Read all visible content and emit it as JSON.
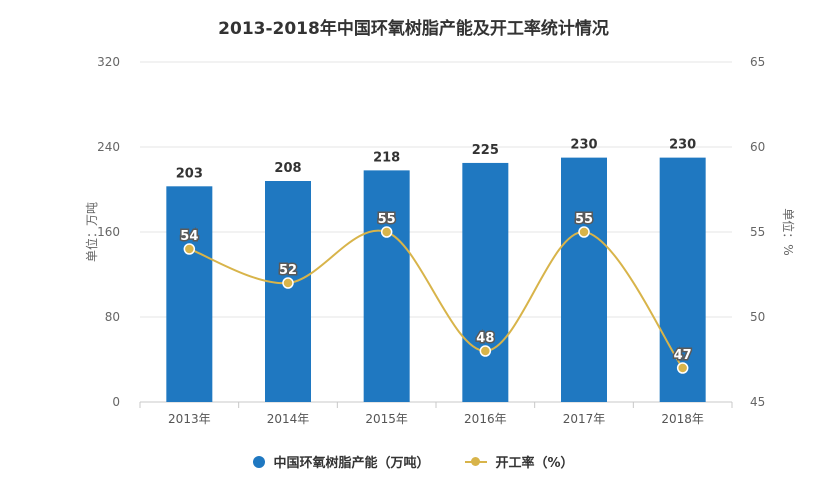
{
  "chart_data": {
    "type": "bar",
    "title": "2013-2018年中国环氧树脂产能及开工率统计情况",
    "categories": [
      "2013年",
      "2014年",
      "2015年",
      "2016年",
      "2017年",
      "2018年"
    ],
    "series": [
      {
        "name": "中国环氧树脂产能（万吨）",
        "type": "bar",
        "axis": "left",
        "values": [
          203,
          208,
          218,
          225,
          230,
          230
        ],
        "color": "#1f78c1"
      },
      {
        "name": "开工率（%）",
        "type": "line",
        "axis": "right",
        "values": [
          54,
          52,
          55,
          48,
          55,
          47
        ],
        "color": "#d8b44a"
      }
    ],
    "ylabel": "单位：万吨",
    "y2label": "单位：%",
    "ylim": [
      0,
      320
    ],
    "yticks": [
      "0",
      "80",
      "160",
      "240",
      "320"
    ],
    "y2lim": [
      45,
      65
    ],
    "y2ticks": [
      "45",
      "50",
      "55",
      "60",
      "65"
    ],
    "grid": true,
    "legend_position": "bottom"
  },
  "legend": {
    "bar_label": "中国环氧树脂产能（万吨）",
    "line_label": "开工率（%）"
  }
}
